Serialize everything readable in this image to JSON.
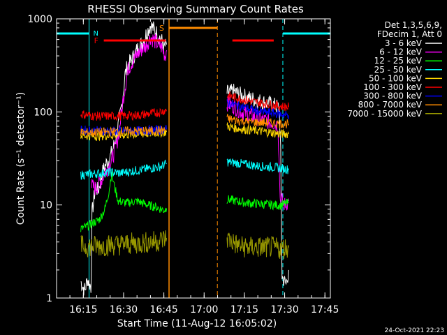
{
  "chart_data": {
    "type": "line",
    "title": "RHESSI Observing Summary Count Rates",
    "xlabel": "Start Time (11-Aug-12 16:05:02)",
    "ylabel": "Count Rate (s⁻¹ detector⁻¹)",
    "yscale": "log",
    "ylim": [
      1,
      1000
    ],
    "xlim_minutes": [
      0,
      102
    ],
    "x_ticks": [
      {
        "label": "16:15",
        "min": 9.97
      },
      {
        "label": "16:30",
        "min": 24.97
      },
      {
        "label": "16:45",
        "min": 39.97
      },
      {
        "label": "17:00",
        "min": 54.97
      },
      {
        "label": "17:15",
        "min": 69.97
      },
      {
        "label": "17:30",
        "min": 84.97
      },
      {
        "label": "17:45",
        "min": 99.97
      }
    ],
    "y_ticks": [
      {
        "label": "1",
        "v": 1
      },
      {
        "label": "10",
        "v": 10
      },
      {
        "label": "100",
        "v": 100
      },
      {
        "label": "1000",
        "v": 1000
      }
    ],
    "legend_header": [
      "Det 1,3,5,6,9,",
      "FDecim 1, Att 0"
    ],
    "series": [
      {
        "name": "3 - 6 keV",
        "color": "#ffffff",
        "segments": [
          [
            [
              9.0,
              1.5
            ],
            [
              10.5,
              1.2
            ],
            [
              11.5,
              1.6
            ],
            [
              12.8,
              1.3
            ],
            [
              13.2,
              8
            ],
            [
              14.5,
              16
            ],
            [
              15.5,
              14
            ],
            [
              17.0,
              22
            ],
            [
              18.5,
              28
            ],
            [
              20.0,
              33
            ],
            [
              21.5,
              45
            ],
            [
              22.5,
              60
            ],
            [
              23.5,
              85
            ],
            [
              24.5,
              130
            ],
            [
              25.5,
              250
            ],
            [
              26.5,
              320
            ],
            [
              28.0,
              360
            ],
            [
              30.0,
              470
            ],
            [
              32.0,
              560
            ],
            [
              33.5,
              700
            ],
            [
              35.0,
              860
            ],
            [
              36.5,
              760
            ],
            [
              38.0,
              660
            ],
            [
              39.0,
              600
            ],
            [
              40.0,
              490
            ],
            [
              41.0,
              530
            ]
          ],
          [
            [
              63.5,
              160
            ],
            [
              66,
              165
            ],
            [
              69,
              150
            ],
            [
              72,
              140
            ],
            [
              75,
              132
            ],
            [
              78,
              125
            ],
            [
              81,
              118
            ],
            [
              83.0,
              110
            ],
            [
              83.5,
              35
            ],
            [
              84.0,
              1.7
            ],
            [
              85.5,
              1.4
            ],
            [
              86.5,
              2.0
            ]
          ]
        ]
      },
      {
        "name": "6 - 12 keV",
        "color": "#ff00ff",
        "segments": [
          [
            [
              13.0,
              16
            ],
            [
              14.5,
              15
            ],
            [
              16.5,
              18
            ],
            [
              18.5,
              24
            ],
            [
              20.5,
              30
            ],
            [
              22.0,
              42
            ],
            [
              23.0,
              55
            ],
            [
              24.0,
              90
            ],
            [
              25.0,
              150
            ],
            [
              26.5,
              280
            ],
            [
              28.0,
              340
            ],
            [
              30.0,
              410
            ],
            [
              32.0,
              480
            ],
            [
              33.5,
              520
            ],
            [
              35.0,
              640
            ],
            [
              37.0,
              560
            ],
            [
              39.0,
              500
            ],
            [
              40.5,
              400
            ],
            [
              41.0,
              460
            ]
          ],
          [
            [
              63.5,
              125
            ],
            [
              66,
              115
            ],
            [
              69,
              100
            ],
            [
              72,
              92
            ],
            [
              75,
              86
            ],
            [
              78,
              80
            ],
            [
              81,
              76
            ],
            [
              82.5,
              72
            ],
            [
              83.3,
              12
            ],
            [
              85,
              10
            ],
            [
              86.5,
              11
            ]
          ]
        ]
      },
      {
        "name": "12 - 25 keV",
        "color": "#00ff00",
        "segments": [
          [
            [
              9.0,
              5.5
            ],
            [
              12,
              6
            ],
            [
              16,
              7
            ],
            [
              18,
              9
            ],
            [
              19.5,
              14
            ],
            [
              20.5,
              22
            ],
            [
              21.5,
              16
            ],
            [
              23,
              11
            ],
            [
              26,
              10.5
            ],
            [
              30,
              11
            ],
            [
              34,
              10
            ],
            [
              37,
              9.5
            ],
            [
              40,
              8.8
            ],
            [
              41,
              9.2
            ]
          ],
          [
            [
              63.5,
              11.5
            ],
            [
              67,
              11
            ],
            [
              71,
              10.5
            ],
            [
              75,
              10.3
            ],
            [
              79,
              10.1
            ],
            [
              83,
              9.9
            ],
            [
              86.5,
              10.5
            ]
          ]
        ]
      },
      {
        "name": "25 - 50 keV",
        "color": "#00ffff",
        "segments": [
          [
            [
              9.0,
              21
            ],
            [
              13,
              21.5
            ],
            [
              17,
              22
            ],
            [
              20,
              22.5
            ],
            [
              24,
              22
            ],
            [
              28,
              23
            ],
            [
              32,
              24
            ],
            [
              36,
              25
            ],
            [
              39,
              26
            ],
            [
              41,
              28
            ]
          ],
          [
            [
              63.5,
              29
            ],
            [
              68,
              28
            ],
            [
              72,
              27
            ],
            [
              76,
              26
            ],
            [
              80,
              25.5
            ],
            [
              83,
              25
            ],
            [
              86.5,
              24
            ]
          ]
        ]
      },
      {
        "name": "50 - 100 keV",
        "color": "#ffd700",
        "segments": [
          [
            [
              9.0,
              56
            ],
            [
              14,
              55
            ],
            [
              20,
              56
            ],
            [
              26,
              57
            ],
            [
              32,
              58
            ],
            [
              38,
              60
            ],
            [
              41,
              61
            ]
          ],
          [
            [
              63.5,
              70
            ],
            [
              68,
              66
            ],
            [
              72,
              64
            ],
            [
              76,
              62
            ],
            [
              80,
              60
            ],
            [
              83,
              58
            ],
            [
              86.5,
              58
            ]
          ]
        ]
      },
      {
        "name": "100 - 300 keV",
        "color": "#ff0000",
        "segments": [
          [
            [
              9.0,
              95
            ],
            [
              14,
              90
            ],
            [
              20,
              90
            ],
            [
              26,
              91
            ],
            [
              32,
              93
            ],
            [
              38,
              99
            ],
            [
              41,
              105
            ]
          ],
          [
            [
              63.5,
              150
            ],
            [
              68,
              140
            ],
            [
              72,
              130
            ],
            [
              76,
              125
            ],
            [
              80,
              120
            ],
            [
              83,
              115
            ],
            [
              86.5,
              113
            ]
          ]
        ]
      },
      {
        "name": "300 - 800 keV",
        "color": "#0000ff",
        "segments": [
          [
            [
              9.0,
              64
            ],
            [
              14,
              63
            ],
            [
              20,
              62
            ],
            [
              26,
              62
            ],
            [
              32,
              63
            ],
            [
              38,
              64
            ],
            [
              41,
              65
            ]
          ],
          [
            [
              63.5,
              125
            ],
            [
              68,
              115
            ],
            [
              72,
              108
            ],
            [
              76,
              100
            ],
            [
              80,
              98
            ],
            [
              83,
              95
            ],
            [
              86.5,
              92
            ]
          ]
        ]
      },
      {
        "name": "800 - 7000 keV",
        "color": "#ff8c00",
        "segments": [
          [
            [
              9.0,
              60
            ],
            [
              14,
              60
            ],
            [
              20,
              61
            ],
            [
              26,
              62
            ],
            [
              32,
              62
            ],
            [
              38,
              63
            ],
            [
              41,
              64
            ]
          ],
          [
            [
              63.5,
              85
            ],
            [
              68,
              80
            ],
            [
              72,
              78
            ],
            [
              76,
              77
            ],
            [
              80,
              76
            ],
            [
              83,
              75
            ],
            [
              86.5,
              74
            ]
          ]
        ]
      },
      {
        "name": "7000 - 15000 keV",
        "color": "#999900",
        "segments": [
          [
            [
              9.0,
              3.6
            ],
            [
              14,
              3.6
            ],
            [
              20,
              3.7
            ],
            [
              26,
              3.8
            ],
            [
              32,
              3.9
            ],
            [
              38,
              4.1
            ],
            [
              41,
              4.4
            ]
          ],
          [
            [
              63.5,
              4.4
            ],
            [
              68,
              3.6
            ],
            [
              72,
              3.5
            ],
            [
              76,
              3.5
            ],
            [
              80,
              3.5
            ],
            [
              83,
              3.4
            ],
            [
              86.5,
              3.5
            ]
          ]
        ]
      }
    ],
    "flags": {
      "N_label": "N",
      "F_label": "F",
      "S_label": "S",
      "night": [
        [
          0,
          12.1
        ],
        [
          84.3,
          102
        ]
      ],
      "flare": [
        [
          17.6,
          40.7
        ],
        [
          65.5,
          80.9
        ]
      ],
      "saa": [
        [
          41.9,
          59.9
        ]
      ]
    },
    "night_color": "#00ffff",
    "flare_color": "#ff0000",
    "saa_color": "#ff8c00",
    "timestamp": "24-Oct-2021 22:23"
  }
}
